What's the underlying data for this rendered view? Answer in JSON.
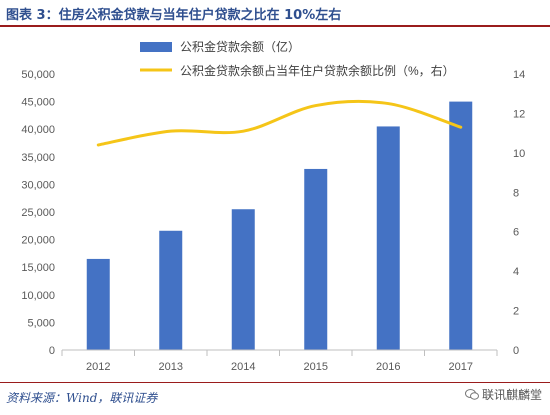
{
  "header": {
    "title": "图表 3：住房公积金贷款与当年住户贷款之比在 10%左右"
  },
  "footer": {
    "source": "资料来源：Wind，联讯证券",
    "watermark": "联讯麒麟堂"
  },
  "colors": {
    "bar": "#4472c4",
    "line": "#f5c518",
    "title": "#2f4f8f",
    "rule": "#9a1c1c",
    "axis_text": "#595959"
  },
  "chart_data": {
    "type": "bar",
    "categories": [
      "2012",
      "2013",
      "2014",
      "2015",
      "2016",
      "2017"
    ],
    "series": [
      {
        "name": "公积金贷款余额（亿）",
        "type": "bar",
        "axis": "left",
        "values": [
          16500,
          21600,
          25500,
          32800,
          40500,
          45000
        ]
      },
      {
        "name": "公积金贷款余额占当年住户贷款余额比例（%，右）",
        "type": "line",
        "axis": "right",
        "values": [
          10.4,
          11.1,
          11.1,
          12.4,
          12.5,
          11.3
        ]
      }
    ],
    "y_left": {
      "min": 0,
      "max": 50000,
      "ticks": [
        "0",
        "5,000",
        "10,000",
        "15,000",
        "20,000",
        "25,000",
        "30,000",
        "35,000",
        "40,000",
        "45,000",
        "50,000"
      ]
    },
    "y_right": {
      "min": 0,
      "max": 14,
      "ticks": [
        "0",
        "2",
        "4",
        "6",
        "8",
        "10",
        "12",
        "14"
      ]
    },
    "legend": "top-center",
    "grid": false
  }
}
